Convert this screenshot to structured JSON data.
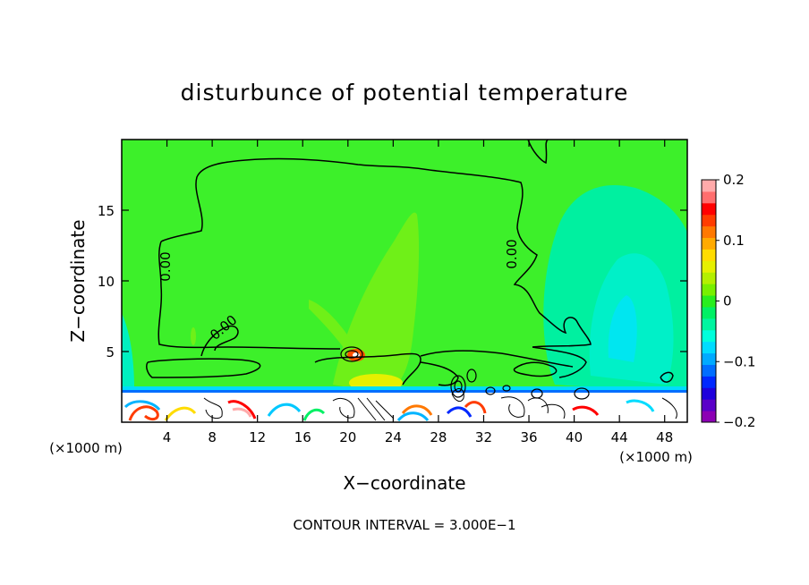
{
  "chart_data": {
    "type": "heatmap",
    "title": "disturbunce of potential temperature",
    "xlabel": "X−coordinate",
    "ylabel": "Z−coordinate",
    "x_unit_left": "(×1000 m)",
    "x_unit_right": "(×1000 m)",
    "xlim": [
      0,
      50
    ],
    "ylim": [
      0,
      20
    ],
    "x_ticks": [
      4,
      8,
      12,
      16,
      20,
      24,
      28,
      32,
      36,
      40,
      44,
      48
    ],
    "y_ticks": [
      5,
      10,
      15
    ],
    "footer": "CONTOUR INTERVAL = 3.000E−1",
    "contour_labels": [
      "0.00",
      "0.00",
      "0.00"
    ],
    "colorbar": {
      "min": -0.2,
      "max": 0.2,
      "tick_values": [
        0.2,
        0.1,
        0,
        -0.1,
        -0.2
      ],
      "tick_labels": [
        "0.2",
        "0.1",
        "0",
        "−0.1",
        "−0.2"
      ],
      "colors": [
        "#8c00b4",
        "#5a00c8",
        "#1e00dc",
        "#0028ff",
        "#006eff",
        "#00aaff",
        "#00dcff",
        "#00ffdc",
        "#00f5a0",
        "#00f064",
        "#28ee1e",
        "#78f000",
        "#b4f000",
        "#e6f000",
        "#ffdc00",
        "#ffaa00",
        "#ff7800",
        "#ff3c00",
        "#ff0000",
        "#ff6e6e",
        "#ffaaaa"
      ]
    },
    "background_value": 0.02,
    "field_color": "#3df02a"
  }
}
